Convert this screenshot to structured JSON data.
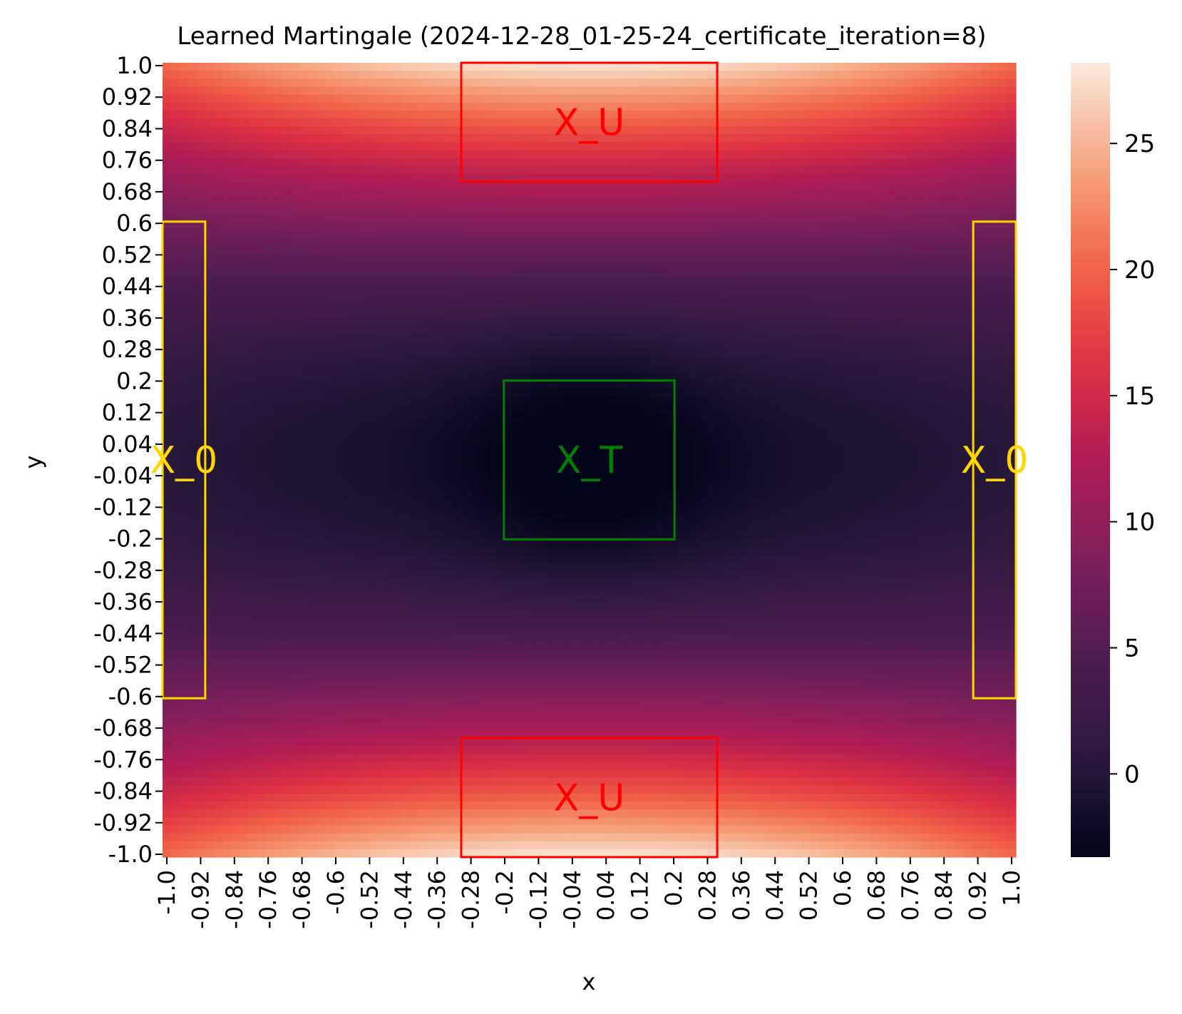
{
  "chart_data": {
    "type": "heatmap",
    "title": "Learned Martingale (2024-12-28_01-25-24_certificate_iteration=8)",
    "xlabel": "x",
    "ylabel": "y",
    "xlim": [
      -1.0,
      1.0
    ],
    "ylim": [
      -1.0,
      1.0
    ],
    "x_ticks": [
      "-1.0",
      "-0.92",
      "-0.84",
      "-0.76",
      "-0.68",
      "-0.6",
      "-0.52",
      "-0.44",
      "-0.36",
      "-0.28",
      "-0.2",
      "-0.12",
      "-0.04",
      "0.04",
      "0.12",
      "0.2",
      "0.28",
      "0.36",
      "0.44",
      "0.52",
      "0.6",
      "0.68",
      "0.76",
      "0.84",
      "0.92",
      "1.0"
    ],
    "y_ticks": [
      "1.0",
      "0.92",
      "0.84",
      "0.76",
      "0.68",
      "0.6",
      "0.52",
      "0.44",
      "0.36",
      "0.28",
      "0.2",
      "0.12",
      "0.04",
      "-0.04",
      "-0.12",
      "-0.2",
      "-0.28",
      "-0.36",
      "-0.44",
      "-0.52",
      "-0.6",
      "-0.68",
      "-0.76",
      "-0.84",
      "-0.92",
      "-1.0"
    ],
    "colorbar": {
      "min": -3.3,
      "max": 28.2,
      "ticks": [
        0,
        5,
        10,
        15,
        20,
        25
      ],
      "tick_labels": [
        "0",
        "5",
        "10",
        "15",
        "20",
        "25"
      ],
      "colormap": "rocket"
    },
    "grid_resolution": 100,
    "field_model": "x^2 - y^2 saddle, minimum near origin",
    "regions": [
      {
        "label": "X_U",
        "x": [
          -0.3,
          0.3
        ],
        "y": [
          0.7,
          1.0
        ],
        "color": "#ff0000"
      },
      {
        "label": "X_U",
        "x": [
          -0.3,
          0.3
        ],
        "y": [
          -1.0,
          -0.7
        ],
        "color": "#ff0000"
      },
      {
        "label": "X_T",
        "x": [
          -0.2,
          0.2
        ],
        "y": [
          -0.2,
          0.2
        ],
        "color": "#008000"
      },
      {
        "label": "X_0",
        "x": [
          -1.0,
          -0.9
        ],
        "y": [
          -0.6,
          0.6
        ],
        "color": "#ffd700"
      },
      {
        "label": "X_0",
        "x": [
          0.9,
          1.0
        ],
        "y": [
          -0.6,
          0.6
        ],
        "color": "#ffd700"
      }
    ]
  }
}
